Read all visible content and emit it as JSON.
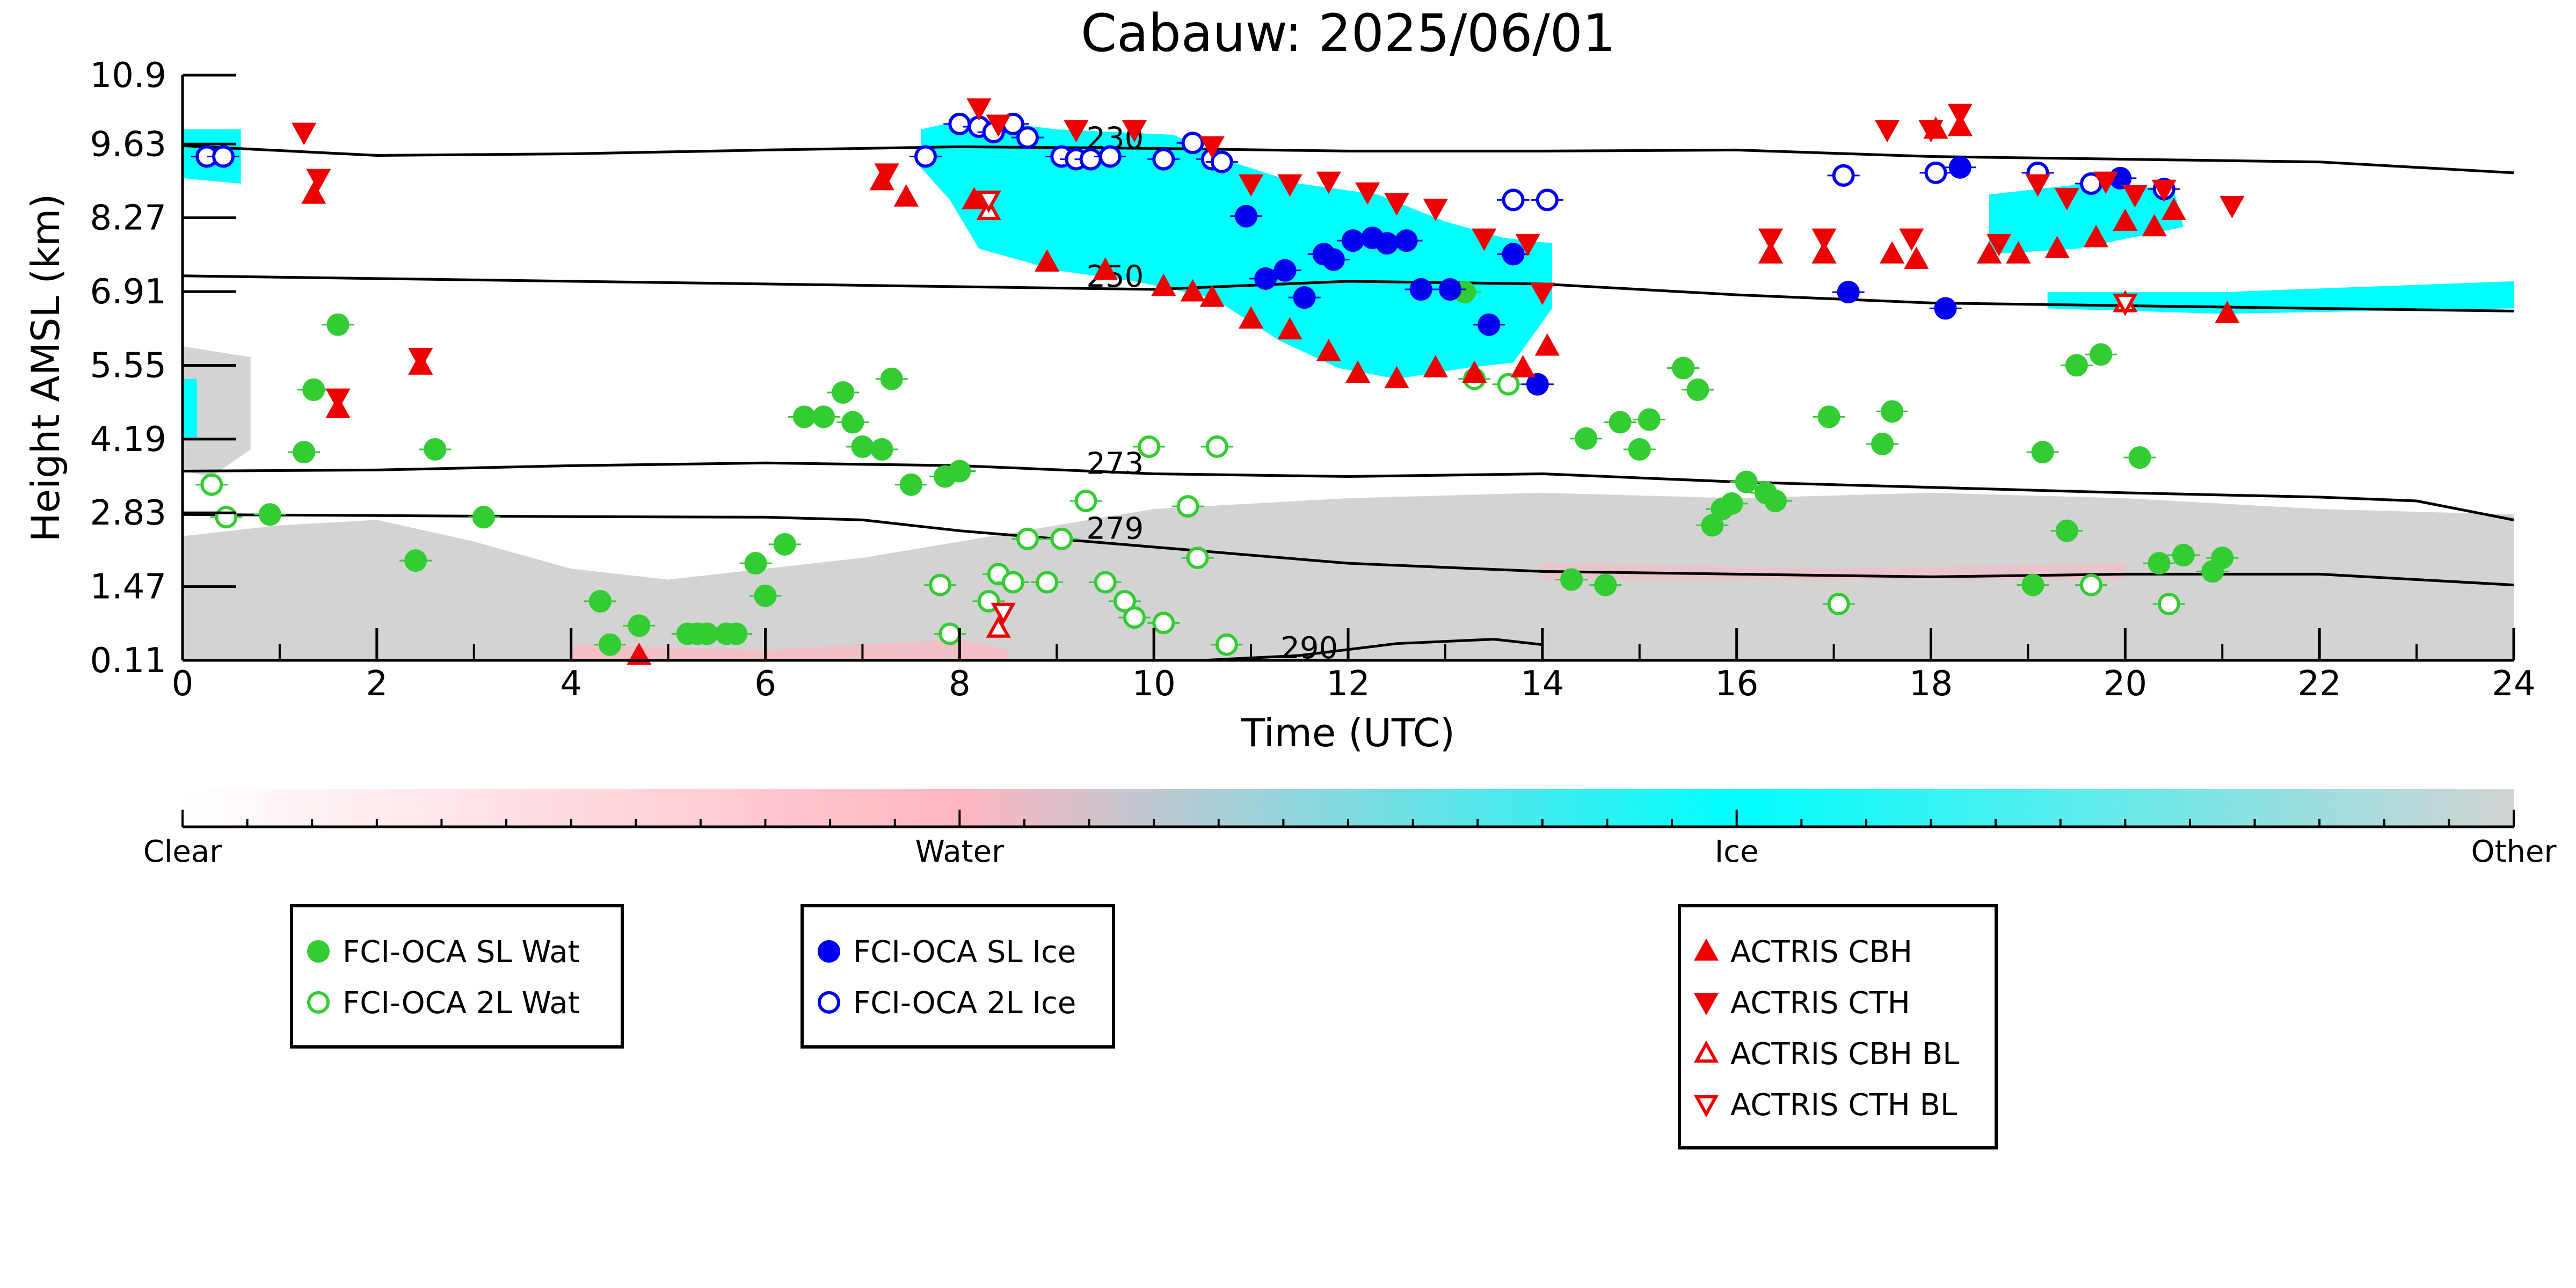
{
  "chart_data": {
    "type": "scatter",
    "title": "Cabauw: 2025/06/01",
    "xlabel": "Time (UTC)",
    "ylabel": "Height AMSL (km)",
    "xlim": [
      0,
      24
    ],
    "ylim": [
      0.11,
      10.9
    ],
    "xticks": [
      "0",
      "2",
      "4",
      "6",
      "8",
      "10",
      "12",
      "14",
      "16",
      "18",
      "20",
      "22",
      "24"
    ],
    "yticks": [
      "0.11",
      "1.47",
      "2.83",
      "4.19",
      "5.55",
      "6.91",
      "8.27",
      "9.63",
      "10.9"
    ],
    "colorbar": {
      "labels": [
        "Clear",
        "Water",
        "Ice",
        "Other"
      ],
      "colors": {
        "clear": "#ffffff",
        "water": "#ffb6c1",
        "ice": "#00ffff",
        "other": "#d3d3d3"
      }
    },
    "isotherm_labels": [
      {
        "text": "230",
        "x": 9.6,
        "y": 9.55
      },
      {
        "text": "250",
        "x": 9.6,
        "y": 7.0
      },
      {
        "text": "273",
        "x": 9.6,
        "y": 3.55
      },
      {
        "text": "279",
        "x": 9.6,
        "y": 2.35
      },
      {
        "text": "290",
        "x": 11.6,
        "y": 0.15
      }
    ],
    "isotherms": [
      {
        "name": "230",
        "x": [
          0,
          2,
          4,
          6,
          8,
          10,
          12,
          14,
          16,
          18,
          20,
          22,
          24
        ],
        "y": [
          9.6,
          9.42,
          9.45,
          9.52,
          9.58,
          9.55,
          9.5,
          9.5,
          9.52,
          9.4,
          9.35,
          9.3,
          9.1
        ]
      },
      {
        "name": "250",
        "x": [
          0,
          2,
          4,
          6,
          8,
          10,
          12,
          14,
          16,
          18,
          20,
          22,
          24
        ],
        "y": [
          7.2,
          7.15,
          7.1,
          7.05,
          7.0,
          6.95,
          7.1,
          7.05,
          6.85,
          6.7,
          6.65,
          6.6,
          6.55
        ]
      },
      {
        "name": "273",
        "x": [
          0,
          2,
          4,
          6,
          8,
          10,
          12,
          14,
          16,
          18,
          20,
          22,
          23,
          24
        ],
        "y": [
          3.6,
          3.62,
          3.7,
          3.75,
          3.7,
          3.55,
          3.5,
          3.55,
          3.4,
          3.3,
          3.2,
          3.12,
          3.05,
          2.7
        ]
      },
      {
        "name": "279",
        "x": [
          0,
          2,
          4,
          6,
          7,
          8,
          10,
          12,
          14,
          16,
          18,
          20,
          22,
          24
        ],
        "y": [
          2.8,
          2.78,
          2.76,
          2.75,
          2.7,
          2.5,
          2.2,
          1.9,
          1.75,
          1.7,
          1.65,
          1.7,
          1.7,
          1.5
        ]
      },
      {
        "name": "290",
        "x": [
          10.5,
          11.5,
          12.5,
          13.5,
          14
        ],
        "y": [
          0.11,
          0.2,
          0.42,
          0.5,
          0.4
        ]
      }
    ],
    "series": [
      {
        "name": "FCI-OCA SL Wat",
        "marker": "circle-filled",
        "color": "#33cc33",
        "x": [
          0.9,
          1.25,
          1.35,
          1.6,
          2.4,
          2.6,
          3.1,
          4.3,
          4.4,
          4.7,
          5.2,
          5.3,
          5.4,
          5.6,
          5.7,
          5.9,
          6.0,
          6.2,
          6.4,
          6.6,
          6.8,
          6.9,
          7.0,
          7.2,
          7.3,
          7.5,
          7.85,
          8.0,
          13.2,
          14.3,
          14.45,
          14.65,
          14.8,
          15.0,
          15.1,
          15.45,
          15.6,
          15.75,
          15.85,
          15.95,
          16.1,
          16.3,
          16.4,
          16.95,
          17.5,
          17.6,
          19.05,
          19.15,
          19.4,
          19.5,
          19.75,
          20.15,
          20.35,
          20.6,
          20.9,
          21.0
        ],
        "y": [
          2.8,
          3.95,
          5.1,
          6.3,
          1.95,
          4.0,
          2.75,
          1.2,
          0.4,
          0.75,
          0.6,
          0.6,
          0.6,
          0.6,
          0.6,
          1.9,
          1.3,
          2.25,
          4.6,
          4.6,
          5.05,
          4.5,
          4.05,
          4.0,
          5.3,
          3.35,
          3.5,
          3.6,
          6.9,
          1.6,
          4.2,
          1.5,
          4.5,
          4.0,
          4.55,
          5.5,
          5.1,
          2.6,
          2.9,
          3.0,
          3.4,
          3.2,
          3.05,
          4.6,
          4.1,
          4.7,
          1.5,
          3.95,
          2.5,
          5.55,
          5.75,
          3.85,
          1.9,
          2.05,
          1.75,
          2.0
        ]
      },
      {
        "name": "FCI-OCA 2L Wat",
        "marker": "circle-open",
        "color": "#33cc33",
        "x": [
          0.3,
          0.45,
          7.8,
          7.9,
          8.3,
          8.4,
          8.55,
          8.7,
          8.9,
          9.05,
          9.3,
          9.5,
          9.7,
          9.8,
          9.95,
          10.1,
          10.35,
          10.45,
          10.65,
          10.75,
          13.3,
          13.65,
          17.05,
          19.65,
          20.45
        ],
        "y": [
          3.35,
          2.75,
          1.5,
          0.6,
          1.2,
          1.7,
          1.55,
          2.35,
          1.55,
          2.35,
          3.05,
          1.55,
          1.2,
          0.9,
          4.05,
          0.8,
          2.95,
          2.0,
          4.05,
          0.4,
          5.3,
          5.2,
          1.15,
          1.5,
          1.15
        ]
      },
      {
        "name": "FCI-OCA SL Ice",
        "marker": "circle-filled",
        "color": "#0000ee",
        "x": [
          10.95,
          11.15,
          11.35,
          11.55,
          11.75,
          11.85,
          12.05,
          12.25,
          12.4,
          12.6,
          12.75,
          13.05,
          13.45,
          13.7,
          13.95,
          17.15,
          18.15,
          18.3,
          19.95
        ],
        "y": [
          8.3,
          7.15,
          7.3,
          6.8,
          7.6,
          7.5,
          7.85,
          7.9,
          7.8,
          7.85,
          6.95,
          6.95,
          6.3,
          7.6,
          5.2,
          6.9,
          6.6,
          9.2,
          9.0
        ]
      },
      {
        "name": "FCI-OCA 2L Ice",
        "marker": "circle-open",
        "color": "#0000ee",
        "x": [
          0.25,
          0.42,
          7.65,
          8.0,
          8.2,
          8.35,
          8.55,
          8.7,
          9.05,
          9.2,
          9.35,
          9.55,
          10.1,
          10.4,
          10.6,
          10.7,
          13.7,
          14.05,
          17.1,
          18.05,
          19.1,
          19.65,
          20.4
        ],
        "y": [
          9.4,
          9.4,
          9.4,
          10.0,
          9.95,
          9.85,
          10.0,
          9.75,
          9.4,
          9.35,
          9.35,
          9.4,
          9.35,
          9.65,
          9.35,
          9.3,
          8.6,
          8.6,
          9.05,
          9.1,
          9.1,
          8.9,
          8.8
        ]
      },
      {
        "name": "ACTRIS CBH",
        "marker": "triangle-up-filled",
        "color": "#ee0000",
        "x": [
          1.35,
          1.6,
          2.45,
          4.7,
          7.2,
          7.45,
          8.15,
          8.9,
          9.5,
          10.1,
          10.4,
          10.6,
          11.0,
          11.4,
          11.8,
          12.1,
          12.5,
          12.9,
          13.3,
          13.8,
          14.05,
          16.35,
          16.9,
          17.6,
          17.85,
          18.05,
          18.3,
          18.6,
          18.9,
          19.3,
          19.7,
          20.0,
          20.3,
          20.5,
          21.05
        ],
        "y": [
          8.7,
          4.75,
          5.55,
          0.2,
          8.95,
          8.65,
          8.6,
          7.45,
          7.3,
          7.0,
          6.9,
          6.8,
          6.4,
          6.2,
          5.8,
          5.4,
          5.3,
          5.5,
          5.4,
          5.5,
          5.9,
          7.6,
          7.6,
          7.6,
          7.5,
          9.9,
          9.95,
          7.6,
          7.6,
          7.7,
          7.9,
          8.2,
          8.1,
          8.4,
          6.5
        ]
      },
      {
        "name": "ACTRIS CTH",
        "marker": "triangle-down-filled",
        "color": "#ee0000",
        "x": [
          1.25,
          1.4,
          1.6,
          2.45,
          7.25,
          8.2,
          8.4,
          9.2,
          9.8,
          10.6,
          11.0,
          11.4,
          11.8,
          12.2,
          12.5,
          12.9,
          13.4,
          13.85,
          14.0,
          16.35,
          16.9,
          17.55,
          17.8,
          18.0,
          18.3,
          18.7,
          19.1,
          19.4,
          19.8,
          20.1,
          20.4,
          21.1
        ],
        "y": [
          9.85,
          9.0,
          4.95,
          5.7,
          9.1,
          10.3,
          10.0,
          9.9,
          9.9,
          9.6,
          8.9,
          8.9,
          8.95,
          8.75,
          8.55,
          8.45,
          7.9,
          7.8,
          6.9,
          7.9,
          7.9,
          9.9,
          7.9,
          9.9,
          10.2,
          7.8,
          8.9,
          8.65,
          8.95,
          8.7,
          8.8,
          8.5
        ]
      },
      {
        "name": "ACTRIS CBH BL",
        "marker": "triangle-up-open",
        "color": "#ee0000",
        "x": [
          8.3,
          8.4,
          20.0
        ],
        "y": [
          8.4,
          0.7,
          6.7
        ]
      },
      {
        "name": "ACTRIS CTH BL",
        "marker": "triangle-down-open",
        "color": "#ee0000",
        "x": [
          8.3,
          8.45,
          20.0
        ],
        "y": [
          8.6,
          1.0,
          6.7
        ]
      }
    ],
    "legend": [
      {
        "group": 1,
        "items": [
          "FCI-OCA SL Wat",
          "FCI-OCA 2L Wat"
        ]
      },
      {
        "group": 2,
        "items": [
          "FCI-OCA SL Ice",
          "FCI-OCA 2L Ice"
        ]
      },
      {
        "group": 3,
        "items": [
          "ACTRIS CBH",
          "ACTRIS CTH",
          "ACTRIS CBH BL",
          "ACTRIS CTH BL"
        ]
      }
    ],
    "grid": false
  }
}
